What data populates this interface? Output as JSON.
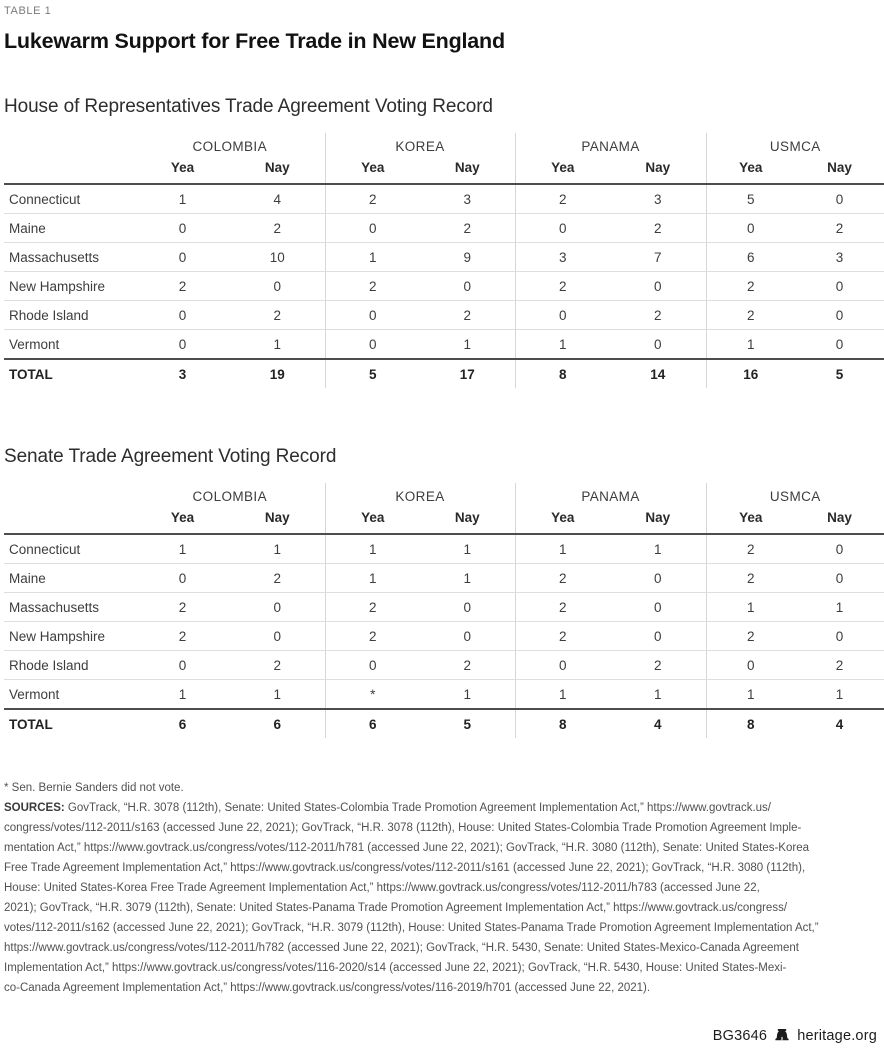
{
  "label": "TABLE 1",
  "title": "Lukewarm Support for Free Trade in New England",
  "colors": {
    "text": "#3d3d3d",
    "title": "#121212",
    "rule_dark": "#4d4d4d",
    "rule_light": "#dedede",
    "muted": "#7b7b7b"
  },
  "agreements": [
    "COLOMBIA",
    "KOREA",
    "PANAMA",
    "USMCA"
  ],
  "vote_columns": [
    "Yea",
    "Nay"
  ],
  "tables": {
    "house": {
      "heading": "House of Representatives Trade Agreement Voting Record",
      "rows": [
        {
          "state": "Connecticut",
          "values": [
            "1",
            "4",
            "2",
            "3",
            "2",
            "3",
            "5",
            "0"
          ]
        },
        {
          "state": "Maine",
          "values": [
            "0",
            "2",
            "0",
            "2",
            "0",
            "2",
            "0",
            "2"
          ]
        },
        {
          "state": "Massachusetts",
          "values": [
            "0",
            "10",
            "1",
            "9",
            "3",
            "7",
            "6",
            "3"
          ]
        },
        {
          "state": "New Hampshire",
          "values": [
            "2",
            "0",
            "2",
            "0",
            "2",
            "0",
            "2",
            "0"
          ]
        },
        {
          "state": "Rhode Island",
          "values": [
            "0",
            "2",
            "0",
            "2",
            "0",
            "2",
            "2",
            "0"
          ]
        },
        {
          "state": "Vermont",
          "values": [
            "0",
            "1",
            "0",
            "1",
            "1",
            "0",
            "1",
            "0"
          ]
        }
      ],
      "total": {
        "label": "TOTAL",
        "values": [
          "3",
          "19",
          "5",
          "17",
          "8",
          "14",
          "16",
          "5"
        ]
      }
    },
    "senate": {
      "heading": "Senate Trade Agreement Voting Record",
      "rows": [
        {
          "state": "Connecticut",
          "values": [
            "1",
            "1",
            "1",
            "1",
            "1",
            "1",
            "2",
            "0"
          ]
        },
        {
          "state": "Maine",
          "values": [
            "0",
            "2",
            "1",
            "1",
            "2",
            "0",
            "2",
            "0"
          ]
        },
        {
          "state": "Massachusetts",
          "values": [
            "2",
            "0",
            "2",
            "0",
            "2",
            "0",
            "1",
            "1"
          ]
        },
        {
          "state": "New Hampshire",
          "values": [
            "2",
            "0",
            "2",
            "0",
            "2",
            "0",
            "2",
            "0"
          ]
        },
        {
          "state": "Rhode Island",
          "values": [
            "0",
            "2",
            "0",
            "2",
            "0",
            "2",
            "0",
            "2"
          ]
        },
        {
          "state": "Vermont",
          "values": [
            "1",
            "1",
            "*",
            "1",
            "1",
            "1",
            "1",
            "1"
          ]
        }
      ],
      "total": {
        "label": "TOTAL",
        "values": [
          "6",
          "6",
          "6",
          "5",
          "8",
          "4",
          "8",
          "4"
        ]
      }
    }
  },
  "footnote": "* Sen. Bernie Sanders did not vote.",
  "sources": {
    "label": "SOURCES:",
    "lines": [
      "GovTrack, “H.R. 3078 (112th), Senate: United States-Colombia Trade Promotion Agreement Implementation Act,” https://www.govtrack.us/",
      "congress/votes/112-2011/s163 (accessed June 22, 2021); GovTrack, “H.R. 3078 (112th), House: United States-Colombia Trade Promotion Agreement Imple-",
      "mentation Act,” https://www.govtrack.us/congress/votes/112-2011/h781 (accessed June 22, 2021); GovTrack, “H.R. 3080 (112th), Senate: United States-Korea",
      "Free Trade Agreement Implementation Act,” https://www.govtrack.us/congress/votes/112-2011/s161 (accessed June 22, 2021); GovTrack, “H.R. 3080 (112th),",
      "House: United States-Korea Free Trade Agreement Implementation Act,” https://www.govtrack.us/congress/votes/112-2011/h783 (accessed June 22,",
      "2021); GovTrack, “H.R. 3079 (112th), Senate: United States-Panama Trade Promotion Agreement Implementation Act,” https://www.govtrack.us/congress/",
      "votes/112-2011/s162 (accessed June 22, 2021); GovTrack, “H.R. 3079 (112th), House: United States-Panama Trade Promotion Agreement Implementation Act,”",
      "https://www.govtrack.us/congress/votes/112-2011/h782 (accessed June 22, 2021); GovTrack, “H.R. 5430, Senate: United States-Mexico-Canada Agreement",
      "Implementation Act,” https://www.govtrack.us/congress/votes/116-2020/s14 (accessed June 22, 2021); GovTrack, “H.R. 5430, House: United States-Mexi-",
      "co-Canada Agreement Implementation Act,” https://www.govtrack.us/congress/votes/116-2019/h701 (accessed June 22, 2021)."
    ]
  },
  "footer": {
    "doc_id": "BG3646",
    "site": "heritage.org"
  }
}
